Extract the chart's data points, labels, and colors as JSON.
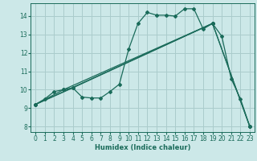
{
  "xlabel": "Humidex (Indice chaleur)",
  "bg_color": "#cce8e8",
  "grid_color": "#aacccc",
  "line_color": "#1a6b5a",
  "xlim": [
    -0.5,
    23.5
  ],
  "ylim": [
    7.7,
    14.7
  ],
  "yticks": [
    8,
    9,
    10,
    11,
    12,
    13,
    14
  ],
  "xticks": [
    0,
    1,
    2,
    3,
    4,
    5,
    6,
    7,
    8,
    9,
    10,
    11,
    12,
    13,
    14,
    15,
    16,
    17,
    18,
    19,
    20,
    21,
    22,
    23
  ],
  "series1": [
    [
      0,
      9.2
    ],
    [
      1,
      9.5
    ],
    [
      2,
      9.9
    ],
    [
      3,
      10.0
    ],
    [
      4,
      10.1
    ],
    [
      5,
      9.6
    ],
    [
      6,
      9.55
    ],
    [
      7,
      9.55
    ],
    [
      8,
      9.9
    ],
    [
      9,
      10.3
    ],
    [
      10,
      12.2
    ],
    [
      11,
      13.6
    ],
    [
      12,
      14.2
    ],
    [
      13,
      14.05
    ],
    [
      14,
      14.05
    ],
    [
      15,
      14.0
    ],
    [
      16,
      14.4
    ],
    [
      17,
      14.4
    ],
    [
      18,
      13.3
    ],
    [
      19,
      13.6
    ],
    [
      20,
      12.9
    ],
    [
      21,
      10.6
    ],
    [
      22,
      9.5
    ],
    [
      23,
      8.0
    ]
  ],
  "series2": [
    [
      0,
      9.2
    ],
    [
      3,
      10.0
    ],
    [
      19,
      13.6
    ],
    [
      23,
      8.0
    ]
  ],
  "series3": [
    [
      0,
      9.2
    ],
    [
      4,
      10.1
    ],
    [
      19,
      13.6
    ],
    [
      23,
      8.0
    ]
  ],
  "series4": [
    [
      0,
      9.2
    ],
    [
      19,
      13.6
    ]
  ]
}
